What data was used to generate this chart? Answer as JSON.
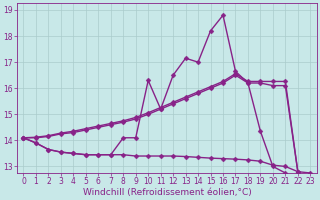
{
  "xlabel": "Windchill (Refroidissement éolien,°C)",
  "xlim": [
    -0.5,
    23.5
  ],
  "ylim": [
    12.75,
    19.25
  ],
  "yticks": [
    13,
    14,
    15,
    16,
    17,
    18,
    19
  ],
  "xticks": [
    0,
    1,
    2,
    3,
    4,
    5,
    6,
    7,
    8,
    9,
    10,
    11,
    12,
    13,
    14,
    15,
    16,
    17,
    18,
    19,
    20,
    21,
    22,
    23
  ],
  "bg_color": "#c8e8e8",
  "grid_color": "#aacccc",
  "line_color": "#882288",
  "s1_x": [
    0,
    1,
    2,
    3,
    4,
    5,
    6,
    7,
    8,
    9,
    10,
    11,
    12,
    13,
    14,
    15,
    16,
    17,
    18,
    19,
    20,
    21,
    22,
    23
  ],
  "s1_y": [
    14.1,
    13.9,
    13.65,
    13.55,
    13.5,
    13.45,
    13.45,
    13.45,
    14.1,
    14.1,
    16.3,
    15.2,
    16.5,
    17.15,
    17.0,
    18.2,
    18.8,
    16.65,
    16.2,
    14.35,
    13.0,
    12.75,
    -999,
    -999
  ],
  "s2_x": [
    0,
    1,
    2,
    3,
    4,
    5,
    6,
    7,
    8,
    9,
    10,
    11,
    12,
    13,
    14,
    15,
    16,
    17,
    18,
    19,
    20,
    21,
    22,
    23
  ],
  "s2_y": [
    14.1,
    13.9,
    13.65,
    13.55,
    13.5,
    13.45,
    13.45,
    13.45,
    13.45,
    13.4,
    13.4,
    13.4,
    13.4,
    13.38,
    13.35,
    13.32,
    13.3,
    13.28,
    13.25,
    13.2,
    13.05,
    13.0,
    12.8,
    12.75
  ],
  "s3_x": [
    0,
    1,
    2,
    3,
    4,
    5,
    6,
    7,
    8,
    9,
    10,
    11,
    12,
    13,
    14,
    15,
    16,
    17,
    18,
    19,
    20,
    21,
    22,
    23
  ],
  "s3_y": [
    14.1,
    14.1,
    14.15,
    14.25,
    14.3,
    14.4,
    14.5,
    14.6,
    14.7,
    14.82,
    15.0,
    15.2,
    15.4,
    15.6,
    15.8,
    16.0,
    16.2,
    16.5,
    16.2,
    16.2,
    16.1,
    16.1,
    12.8,
    -999
  ],
  "s4_x": [
    0,
    1,
    2,
    3,
    4,
    5,
    6,
    7,
    8,
    9,
    10,
    11,
    12,
    13,
    14,
    15,
    16,
    17,
    18,
    19,
    20,
    21,
    22,
    23
  ],
  "s4_y": [
    14.1,
    14.12,
    14.18,
    14.28,
    14.35,
    14.45,
    14.55,
    14.65,
    14.75,
    14.88,
    15.06,
    15.26,
    15.46,
    15.66,
    15.86,
    16.06,
    16.26,
    16.56,
    16.26,
    16.26,
    16.26,
    16.26,
    12.8,
    -999
  ],
  "marker": "D",
  "markersize": 2.5,
  "linewidth": 1.0,
  "tick_fontsize": 5.5,
  "xlabel_fontsize": 6.5
}
